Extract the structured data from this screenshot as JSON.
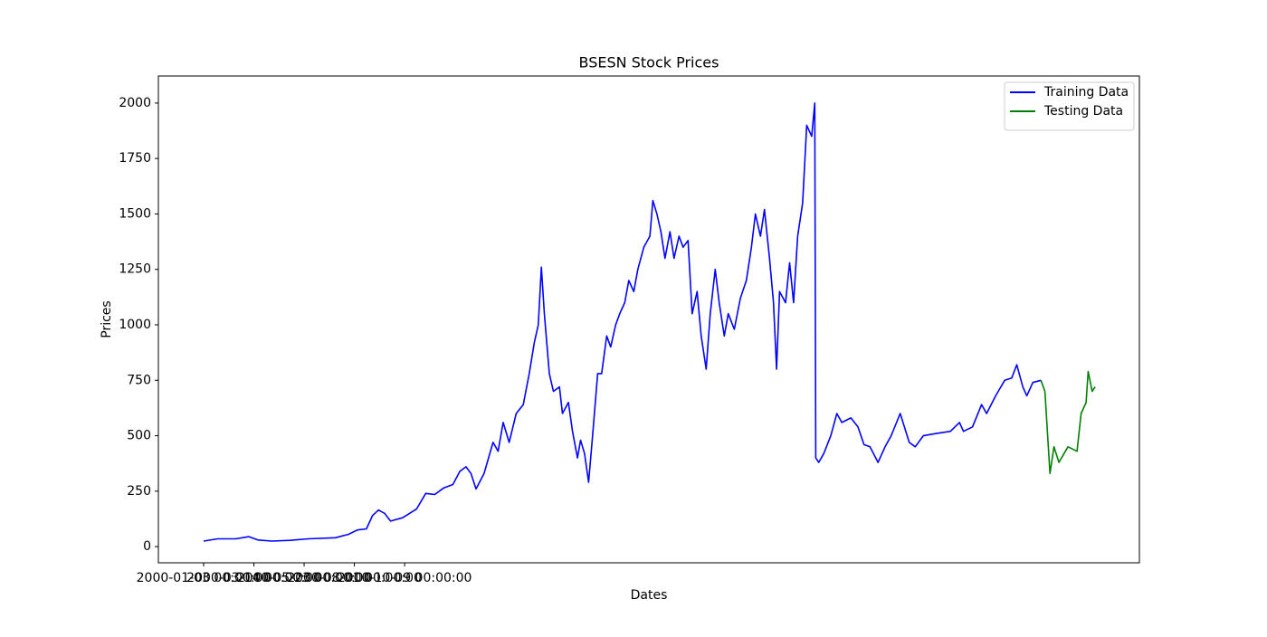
{
  "chart_data": {
    "type": "line",
    "title": "BSESN Stock Prices",
    "xlabel": "Dates",
    "ylabel": "Prices",
    "xlim": [
      -45,
      931
    ],
    "ylim": [
      -73,
      2122
    ],
    "xticks": [
      {
        "value": 0,
        "label": "2000-01-03 00:00:00"
      },
      {
        "value": 50,
        "label": "2000-03-14 00:00:00"
      },
      {
        "value": 100,
        "label": "2000-05-23 00:00:00"
      },
      {
        "value": 150,
        "label": "2000-08-01 00:00:00"
      },
      {
        "value": 200,
        "label": "2000-10-09 00:00:00"
      }
    ],
    "yticks": [
      0,
      250,
      500,
      750,
      1000,
      1250,
      1500,
      1750,
      2000
    ],
    "legend": "upper right",
    "series": [
      {
        "name": "Training Data",
        "color": "#0000ff",
        "x": [
          0,
          14,
          32,
          45,
          54,
          68,
          86,
          104,
          131,
          144,
          153,
          162,
          168,
          174,
          180,
          186,
          198,
          212,
          221,
          230,
          239,
          248,
          255,
          261,
          266,
          271,
          279,
          288,
          293,
          298,
          304,
          311,
          318,
          324,
          329,
          333,
          336,
          339,
          344,
          348,
          354,
          357,
          363,
          367,
          372,
          375,
          379,
          383,
          387,
          392,
          396,
          401,
          405,
          410,
          414,
          419,
          423,
          428,
          432,
          438,
          444,
          447,
          451,
          455,
          459,
          464,
          468,
          473,
          477,
          482,
          486,
          491,
          495,
          500,
          504,
          509,
          513,
          518,
          522,
          528,
          534,
          540,
          545,
          549,
          554,
          558,
          563,
          567,
          570,
          573,
          579,
          583,
          587,
          591,
          596,
          600,
          605,
          608,
          609,
          612,
          617,
          624,
          630,
          635,
          644,
          651,
          657,
          663,
          671,
          678,
          684,
          693,
          702,
          708,
          716,
          729,
          743,
          752,
          756,
          765,
          774,
          779,
          788,
          797,
          804,
          809,
          815,
          819,
          825,
          833
        ],
        "values": [
          25,
          35,
          35,
          45,
          30,
          25,
          28,
          35,
          40,
          55,
          75,
          80,
          140,
          165,
          150,
          115,
          130,
          170,
          240,
          235,
          265,
          280,
          340,
          360,
          330,
          260,
          330,
          470,
          430,
          560,
          470,
          600,
          640,
          780,
          920,
          1000,
          1260,
          1050,
          780,
          700,
          720,
          600,
          650,
          520,
          400,
          480,
          420,
          290,
          500,
          780,
          780,
          950,
          900,
          1000,
          1050,
          1100,
          1200,
          1150,
          1250,
          1350,
          1400,
          1560,
          1500,
          1420,
          1300,
          1420,
          1300,
          1400,
          1350,
          1380,
          1050,
          1150,
          950,
          800,
          1050,
          1250,
          1100,
          950,
          1050,
          980,
          1120,
          1200,
          1350,
          1500,
          1400,
          1520,
          1300,
          1100,
          800,
          1150,
          1100,
          1280,
          1100,
          1400,
          1550,
          1900,
          1850,
          2000,
          400,
          380,
          420,
          500,
          600,
          560,
          580,
          540,
          460,
          450,
          380,
          450,
          500,
          600,
          470,
          450,
          500,
          510,
          520,
          560,
          520,
          540,
          640,
          600,
          680,
          750,
          760,
          820,
          720,
          680,
          740,
          750
        ]
      },
      {
        "name": "Testing Data",
        "color": "#008000",
        "x": [
          833,
          837,
          842,
          846,
          851,
          860,
          869,
          873,
          878,
          880,
          884,
          887
        ],
        "values": [
          750,
          700,
          330,
          450,
          380,
          450,
          430,
          600,
          650,
          790,
          700,
          720
        ]
      }
    ]
  }
}
